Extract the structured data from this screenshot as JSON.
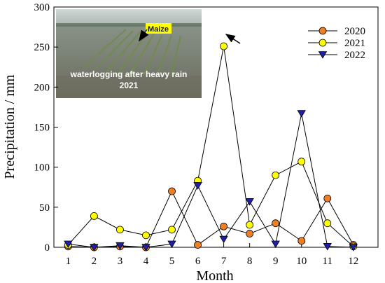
{
  "chart_data": {
    "type": "line",
    "xlabel": "Month",
    "ylabel": "Precipitation / mm",
    "x": [
      1,
      2,
      3,
      4,
      5,
      6,
      7,
      8,
      9,
      10,
      11,
      12
    ],
    "x_ticks": [
      "1",
      "2",
      "3",
      "4",
      "5",
      "6",
      "7",
      "8",
      "9",
      "10",
      "11",
      "12"
    ],
    "ylim": [
      0,
      300
    ],
    "y_ticks": [
      "0",
      "50",
      "100",
      "150",
      "200",
      "250",
      "300"
    ],
    "grid": false,
    "legend_position": "top-right",
    "series": [
      {
        "name": "2020",
        "marker": "circle",
        "color": "#f07f22",
        "values": [
          1,
          0,
          1,
          0,
          70,
          3,
          26,
          17,
          30,
          8,
          61,
          3
        ]
      },
      {
        "name": "2021",
        "marker": "circle",
        "color": "#ffff00",
        "values": [
          3,
          39,
          22,
          15,
          22,
          83,
          251,
          28,
          90,
          107,
          30,
          1
        ]
      },
      {
        "name": "2022",
        "marker": "triangle-down",
        "color": "#1f1fa8",
        "values": [
          4,
          0,
          2,
          0,
          4,
          77,
          10,
          57,
          4,
          167,
          1,
          0
        ]
      }
    ]
  },
  "inset_photo": {
    "caption_line1": "waterlogging after heavy rain",
    "caption_line2": "2021",
    "label": "Maize"
  }
}
